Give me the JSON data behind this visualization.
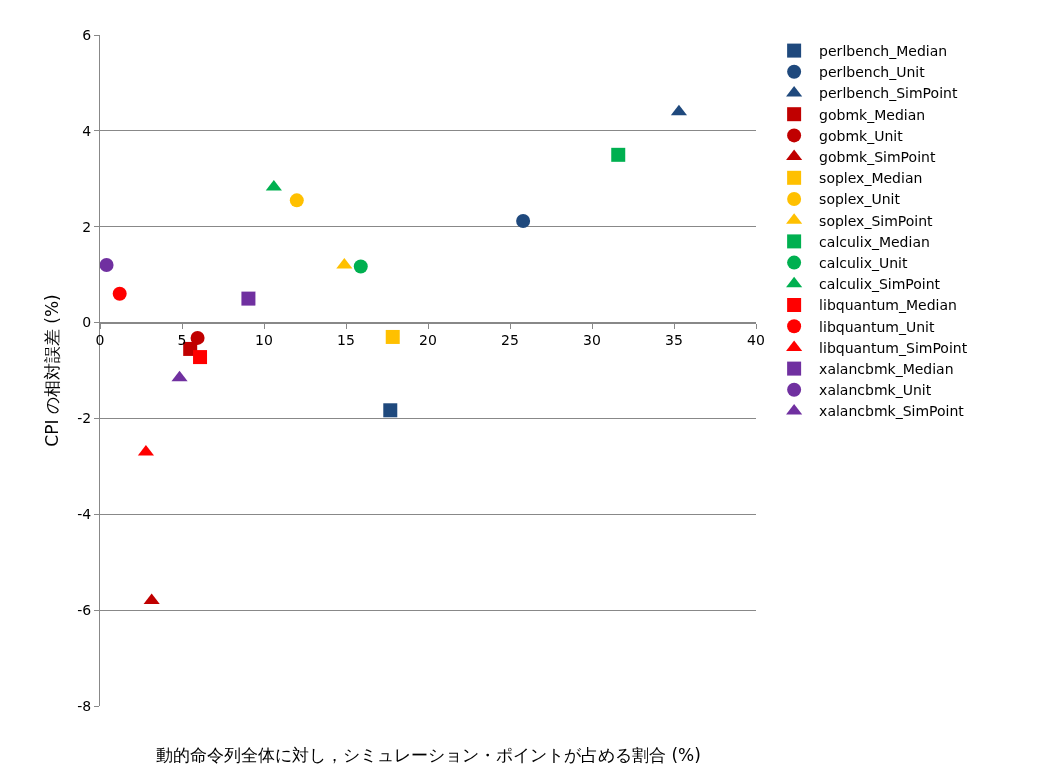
{
  "chart_data": {
    "type": "scatter",
    "xlabel": "動的命令列全体に対し，シミュレーション・ポイントが占める割合 (%)",
    "ylabel": "CPI の相対誤差 (%)",
    "xlim": [
      0,
      40
    ],
    "xticks": [
      0,
      5,
      10,
      15,
      20,
      25,
      30,
      35,
      40
    ],
    "ylim": [
      -8,
      6
    ],
    "yticks": [
      -8,
      -6,
      -4,
      -2,
      0,
      2,
      4,
      6
    ],
    "grid": "y",
    "legend": "right",
    "series": [
      {
        "name": "perlbench_Median",
        "color": "#1f497d",
        "marker": "square",
        "x": [
          17.7
        ],
        "values": [
          -1.83
        ]
      },
      {
        "name": "perlbench_Unit",
        "color": "#1f497d",
        "marker": "circle",
        "x": [
          25.8
        ],
        "values": [
          2.12
        ]
      },
      {
        "name": "perlbench_SimPoint",
        "color": "#1f497d",
        "marker": "triangle",
        "x": [
          35.3
        ],
        "values": [
          4.4
        ]
      },
      {
        "name": "gobmk_Median",
        "color": "#c00000",
        "marker": "square",
        "x": [
          5.5
        ],
        "values": [
          -0.55
        ]
      },
      {
        "name": "gobmk_Unit",
        "color": "#c00000",
        "marker": "circle",
        "x": [
          5.95
        ],
        "values": [
          -0.32
        ]
      },
      {
        "name": "gobmk_SimPoint",
        "color": "#c00000",
        "marker": "triangle",
        "x": [
          3.15
        ],
        "values": [
          -5.8
        ]
      },
      {
        "name": "soplex_Median",
        "color": "#ffc000",
        "marker": "square",
        "x": [
          17.85
        ],
        "values": [
          -0.3
        ]
      },
      {
        "name": "soplex_Unit",
        "color": "#ffc000",
        "marker": "circle",
        "x": [
          12.0
        ],
        "values": [
          2.55
        ]
      },
      {
        "name": "soplex_SimPoint",
        "color": "#ffc000",
        "marker": "triangle",
        "x": [
          14.9
        ],
        "values": [
          1.2
        ]
      },
      {
        "name": "calculix_Median",
        "color": "#00b050",
        "marker": "square",
        "x": [
          31.6
        ],
        "values": [
          3.5
        ]
      },
      {
        "name": "calculix_Unit",
        "color": "#00b050",
        "marker": "circle",
        "x": [
          15.9
        ],
        "values": [
          1.17
        ]
      },
      {
        "name": "calculix_SimPoint",
        "color": "#00b050",
        "marker": "triangle",
        "x": [
          10.6
        ],
        "values": [
          2.83
        ]
      },
      {
        "name": "libquantum_Median",
        "color": "#ff0000",
        "marker": "square",
        "x": [
          6.1
        ],
        "values": [
          -0.72
        ]
      },
      {
        "name": "libquantum_Unit",
        "color": "#ff0000",
        "marker": "circle",
        "x": [
          1.2
        ],
        "values": [
          0.6
        ]
      },
      {
        "name": "libquantum_SimPoint",
        "color": "#ff0000",
        "marker": "triangle",
        "x": [
          2.8
        ],
        "values": [
          -2.7
        ]
      },
      {
        "name": "xalancbmk_Median",
        "color": "#7030a0",
        "marker": "square",
        "x": [
          9.05
        ],
        "values": [
          0.5
        ]
      },
      {
        "name": "xalancbmk_Unit",
        "color": "#7030a0",
        "marker": "circle",
        "x": [
          0.4
        ],
        "values": [
          1.2
        ]
      },
      {
        "name": "xalancbmk_SimPoint",
        "color": "#7030a0",
        "marker": "triangle",
        "x": [
          4.85
        ],
        "values": [
          -1.15
        ]
      }
    ]
  }
}
